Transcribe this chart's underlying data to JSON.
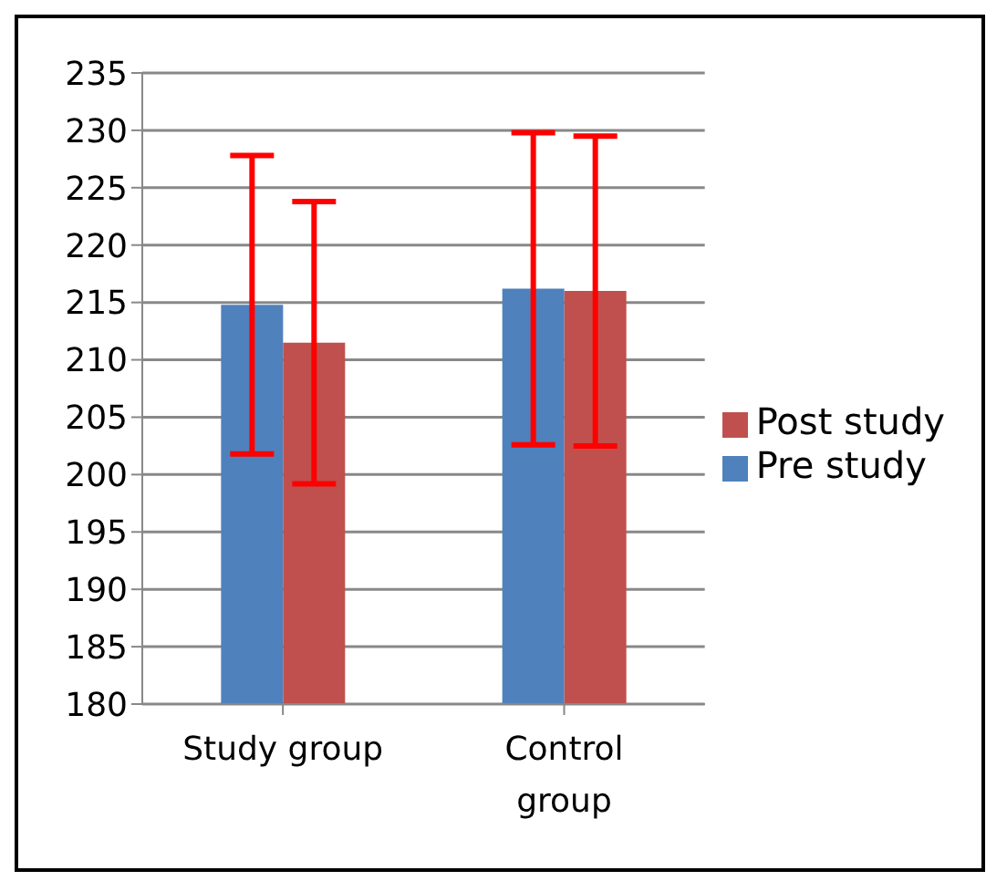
{
  "chart_data": {
    "type": "bar",
    "categories": [
      "Study group",
      "Control group"
    ],
    "series": [
      {
        "name": "Pre study",
        "color": "#4f81bd",
        "values": [
          214.8,
          216.2
        ],
        "errors": [
          13,
          13.6
        ]
      },
      {
        "name": "Post study",
        "color": "#c0504d",
        "values": [
          211.5,
          216
        ],
        "errors": [
          12.3,
          13.5
        ]
      }
    ],
    "ylim": [
      180,
      235
    ],
    "yticks": [
      180,
      185,
      190,
      195,
      200,
      205,
      210,
      215,
      220,
      225,
      230,
      235
    ],
    "grid": "y",
    "legend": "right"
  }
}
